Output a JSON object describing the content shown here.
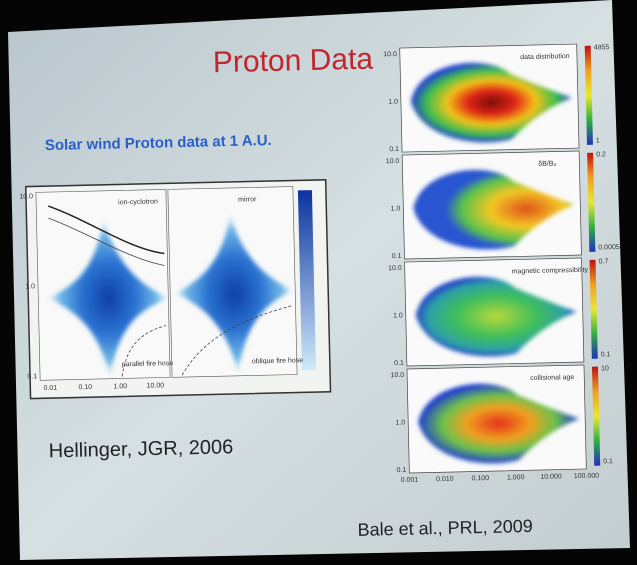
{
  "title": "Proton Data",
  "subtitle": "Solar wind Proton data at 1 A.U.",
  "left_figure": {
    "citation": "Hellinger, JGR, 2006",
    "panel_labels": [
      "ion-cyclotron",
      "mirror"
    ],
    "annotations": [
      "parallel fire hose",
      "oblique fire hose"
    ],
    "y_ticks": [
      "10.0",
      "1.0",
      "0.1"
    ],
    "x_ticks": [
      "0.01",
      "0.10",
      "1.00",
      "10.00"
    ]
  },
  "right_figure": {
    "citation": "Bale et al., PRL, 2009",
    "panels": [
      {
        "label": "data distribution",
        "colorbar": [
          "4855",
          "1"
        ]
      },
      {
        "label": "δB/B₀",
        "colorbar": [
          "0.2",
          "0.0005"
        ]
      },
      {
        "label": "magnetic compressibility",
        "colorbar": [
          "0.7",
          "0.1"
        ]
      },
      {
        "label": "collisional age",
        "colorbar": [
          "10",
          "0.1"
        ]
      }
    ],
    "y_ticks": [
      "10.0",
      "1.0",
      "0.1"
    ],
    "x_ticks": [
      "0.001",
      "0.010",
      "0.100",
      "1.000",
      "10.000",
      "100.000"
    ]
  }
}
